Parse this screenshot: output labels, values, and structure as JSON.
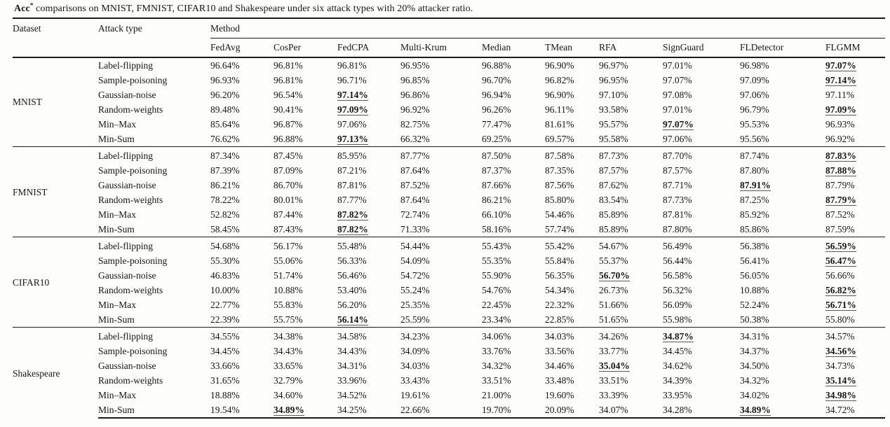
{
  "caption": {
    "prefix": "Acc",
    "superscript": "*",
    "rest": " comparisons on MNIST, FMNIST, CIFAR10 and Shakespeare under six attack types with 20% attacker ratio."
  },
  "table": {
    "col_dataset": "Dataset",
    "col_attack": "Attack type",
    "col_method": "Method",
    "methods": [
      "FedAvg",
      "CosPer",
      "FedCPA",
      "Multi-Krum",
      "Median",
      "TMean",
      "RFA",
      "SignGuard",
      "FLDetector",
      "FLGMM"
    ],
    "sections": [
      {
        "dataset": "MNIST",
        "rows": [
          {
            "attack": "Label-flipping",
            "values": [
              "96.64%",
              "96.81%",
              "96.81%",
              "96.95%",
              "96.88%",
              "96.90%",
              "96.97%",
              "97.01%",
              "96.98%",
              "97.07%"
            ],
            "bold": [
              9
            ]
          },
          {
            "attack": "Sample-poisoning",
            "values": [
              "96.93%",
              "96.81%",
              "96.71%",
              "96.85%",
              "96.70%",
              "96.82%",
              "96.95%",
              "97.07%",
              "97.09%",
              "97.14%"
            ],
            "bold": [
              9
            ]
          },
          {
            "attack": "Gaussian-noise",
            "values": [
              "96.20%",
              "96.54%",
              "97.14%",
              "96.86%",
              "96.94%",
              "96.90%",
              "97.10%",
              "97.08%",
              "97.06%",
              "97.11%"
            ],
            "bold": [
              2
            ]
          },
          {
            "attack": "Random-weights",
            "values": [
              "89.48%",
              "90.41%",
              "97.09%",
              "96.92%",
              "96.26%",
              "96.11%",
              "93.58%",
              "97.01%",
              "96.79%",
              "97.09%"
            ],
            "bold": [
              2,
              9
            ]
          },
          {
            "attack": "Min–Max",
            "values": [
              "85.64%",
              "96.87%",
              "97.06%",
              "82.75%",
              "77.47%",
              "81.61%",
              "95.57%",
              "97.07%",
              "95.53%",
              "96.93%"
            ],
            "bold": [
              7
            ]
          },
          {
            "attack": "Min-Sum",
            "values": [
              "76.62%",
              "96.88%",
              "97.13%",
              "66.32%",
              "69.25%",
              "69.57%",
              "95.58%",
              "97.06%",
              "95.56%",
              "96.92%"
            ],
            "bold": [
              2
            ]
          }
        ]
      },
      {
        "dataset": "FMNIST",
        "rows": [
          {
            "attack": "Label-flipping",
            "values": [
              "87.34%",
              "87.45%",
              "85.95%",
              "87.77%",
              "87.50%",
              "87.58%",
              "87.73%",
              "87.70%",
              "87.74%",
              "87.83%"
            ],
            "bold": [
              9
            ]
          },
          {
            "attack": "Sample-poisoning",
            "values": [
              "87.39%",
              "87.09%",
              "87.21%",
              "87.64%",
              "87.37%",
              "87.35%",
              "87.57%",
              "87.57%",
              "87.80%",
              "87.88%"
            ],
            "bold": [
              9
            ]
          },
          {
            "attack": "Gaussian-noise",
            "values": [
              "86.21%",
              "86.70%",
              "87.81%",
              "87.52%",
              "87.66%",
              "87.56%",
              "87.62%",
              "87.71%",
              "87.91%",
              "87.79%"
            ],
            "bold": [
              8
            ]
          },
          {
            "attack": "Random-weights",
            "values": [
              "78.22%",
              "80.01%",
              "87.77%",
              "87.64%",
              "86.21%",
              "85.80%",
              "83.54%",
              "87.73%",
              "87.25%",
              "87.79%"
            ],
            "bold": [
              9
            ]
          },
          {
            "attack": "Min–Max",
            "values": [
              "52.82%",
              "87.44%",
              "87.82%",
              "72.74%",
              "66.10%",
              "54.46%",
              "85.89%",
              "87.81%",
              "85.92%",
              "87.52%"
            ],
            "bold": [
              2
            ]
          },
          {
            "attack": "Min-Sum",
            "values": [
              "58.45%",
              "87.43%",
              "87.82%",
              "71.33%",
              "58.16%",
              "57.74%",
              "85.89%",
              "87.80%",
              "85.86%",
              "87.59%"
            ],
            "bold": [
              2
            ]
          }
        ]
      },
      {
        "dataset": "CIFAR10",
        "rows": [
          {
            "attack": "Label-flipping",
            "values": [
              "54.68%",
              "56.17%",
              "55.48%",
              "54.44%",
              "55.43%",
              "55.42%",
              "54.67%",
              "56.49%",
              "56.38%",
              "56.59%"
            ],
            "bold": [
              9
            ]
          },
          {
            "attack": "Sample-poisoning",
            "values": [
              "55.30%",
              "55.06%",
              "56.33%",
              "54.09%",
              "55.35%",
              "55.84%",
              "55.37%",
              "56.44%",
              "56.41%",
              "56.47%"
            ],
            "bold": [
              9
            ]
          },
          {
            "attack": "Gaussian-noise",
            "values": [
              "46.83%",
              "51.74%",
              "56.46%",
              "54.72%",
              "55.90%",
              "56.35%",
              "56.70%",
              "56.58%",
              "56.05%",
              "56.66%"
            ],
            "bold": [
              6
            ]
          },
          {
            "attack": "Random-weights",
            "values": [
              "10.00%",
              "10.88%",
              "53.40%",
              "55.24%",
              "54.76%",
              "54.34%",
              "26.73%",
              "56.32%",
              "10.88%",
              "56.82%"
            ],
            "bold": [
              9
            ]
          },
          {
            "attack": "Min–Max",
            "values": [
              "22.77%",
              "55.83%",
              "56.20%",
              "25.35%",
              "22.45%",
              "22.32%",
              "51.66%",
              "56.09%",
              "52.24%",
              "56.71%"
            ],
            "bold": [
              9
            ]
          },
          {
            "attack": "Min-Sum",
            "values": [
              "22.39%",
              "55.75%",
              "56.14%",
              "25.59%",
              "23.34%",
              "22.85%",
              "51.65%",
              "55.98%",
              "50.38%",
              "55.80%"
            ],
            "bold": [
              2
            ]
          }
        ]
      },
      {
        "dataset": "Shakespeare",
        "rows": [
          {
            "attack": "Label-flipping",
            "values": [
              "34.55%",
              "34.38%",
              "34.58%",
              "34.23%",
              "34.06%",
              "34.03%",
              "34.26%",
              "34.87%",
              "34.31%",
              "34.57%"
            ],
            "bold": [
              7
            ]
          },
          {
            "attack": "Sample-poisoning",
            "values": [
              "34.45%",
              "34.43%",
              "34.43%",
              "34.09%",
              "33.76%",
              "33.56%",
              "33.77%",
              "34.45%",
              "34.37%",
              "34.56%"
            ],
            "bold": [
              9
            ]
          },
          {
            "attack": "Gaussian-noise",
            "values": [
              "33.66%",
              "33.65%",
              "34.31%",
              "34.03%",
              "34.32%",
              "34.46%",
              "35.04%",
              "34.62%",
              "34.50%",
              "34.73%"
            ],
            "bold": [
              6
            ]
          },
          {
            "attack": "Random-weights",
            "values": [
              "31.65%",
              "32.79%",
              "33.96%",
              "33.43%",
              "33.51%",
              "33.48%",
              "33.51%",
              "34.39%",
              "34.32%",
              "35.14%"
            ],
            "bold": [
              9
            ]
          },
          {
            "attack": "Min–Max",
            "values": [
              "18.88%",
              "34.60%",
              "34.52%",
              "19.61%",
              "21.00%",
              "19.60%",
              "33.39%",
              "33.95%",
              "34.02%",
              "34.98%"
            ],
            "bold": [
              9
            ]
          },
          {
            "attack": "Min-Sum",
            "values": [
              "19.54%",
              "34.89%",
              "34.25%",
              "22.66%",
              "19.70%",
              "20.09%",
              "34.07%",
              "34.28%",
              "34.89%",
              "34.72%"
            ],
            "bold": [
              1,
              8
            ]
          }
        ]
      }
    ]
  }
}
